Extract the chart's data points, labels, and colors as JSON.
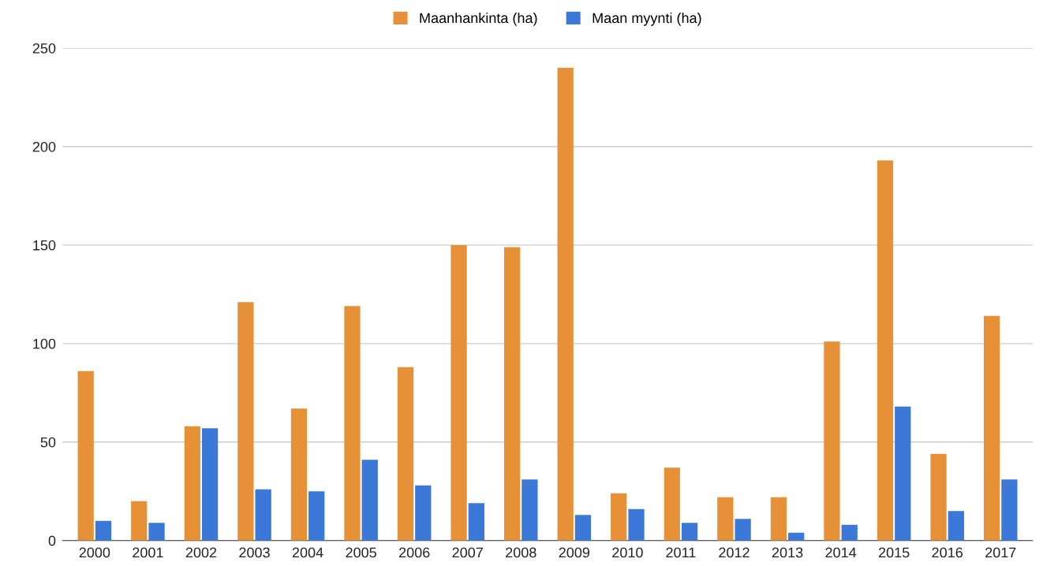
{
  "chart_data": {
    "type": "bar",
    "categories": [
      "2000",
      "2001",
      "2002",
      "2003",
      "2004",
      "2005",
      "2006",
      "2007",
      "2008",
      "2009",
      "2010",
      "2011",
      "2012",
      "2013",
      "2014",
      "2015",
      "2016",
      "2017"
    ],
    "series": [
      {
        "name": "Maanhankinta (ha)",
        "color": "#e69138",
        "values": [
          86,
          20,
          58,
          121,
          67,
          119,
          88,
          150,
          149,
          240,
          24,
          37,
          22,
          22,
          101,
          193,
          44,
          114
        ]
      },
      {
        "name": "Maan myynti (ha)",
        "color": "#3c78d8",
        "values": [
          10,
          9,
          57,
          26,
          25,
          41,
          28,
          19,
          31,
          13,
          16,
          9,
          11,
          4,
          8,
          68,
          15,
          31
        ]
      }
    ],
    "ylim": [
      0,
      250
    ],
    "yticks": [
      0,
      50,
      100,
      150,
      200,
      250
    ],
    "grid": "y",
    "legend": "top"
  }
}
